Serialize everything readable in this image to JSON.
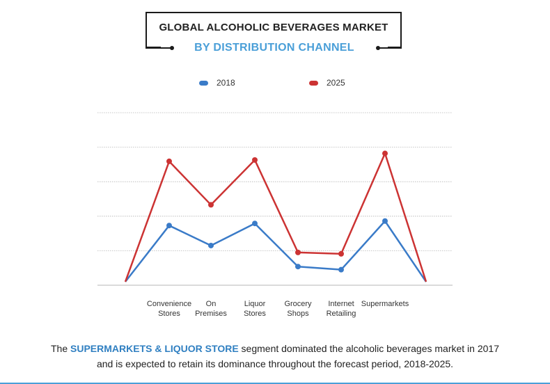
{
  "title": {
    "line1": "GLOBAL ALCOHOLIC BEVERAGES MARKET",
    "line2": "BY DISTRIBUTION CHANNEL"
  },
  "colors": {
    "series_2018": "#3a7bc8",
    "series_2025": "#cc3333",
    "accent": "#4a9fd8",
    "grid": "#b5b5b5"
  },
  "chart_data": {
    "type": "line",
    "title": "GLOBAL ALCOHOLIC BEVERAGES MARKET BY DISTRIBUTION CHANNEL",
    "legend_position": "top-center",
    "grid": true,
    "x_tick_labels": [
      [
        "Convenience",
        "Stores"
      ],
      [
        "On",
        "Premises"
      ],
      [
        "Liquor",
        "Stores"
      ],
      [
        "Grocery",
        "Shops"
      ],
      [
        "Internet",
        "Retailing"
      ],
      [
        "Supermarkets"
      ]
    ],
    "categories": [
      "",
      "Convenience Stores",
      "On Premises",
      "Liquor Stores",
      "Grocery Shops",
      "Internet Retailing",
      "Supermarkets",
      ""
    ],
    "ylim": [
      0,
      5
    ],
    "series": [
      {
        "name": "2018",
        "values": [
          0.1,
          1.73,
          1.15,
          1.79,
          0.54,
          0.45,
          1.86,
          0.1
        ]
      },
      {
        "name": "2025",
        "values": [
          0.1,
          3.59,
          2.33,
          3.63,
          0.95,
          0.91,
          3.82,
          0.1
        ]
      }
    ]
  },
  "caption": {
    "prefix": "The ",
    "highlight": "SUPERMARKETS & LIQUOR STORE",
    "rest": " segment dominated the alcoholic beverages market in 2017",
    "line2": "and is expected to retain its dominance throughout the forecast period, 2018-2025."
  }
}
